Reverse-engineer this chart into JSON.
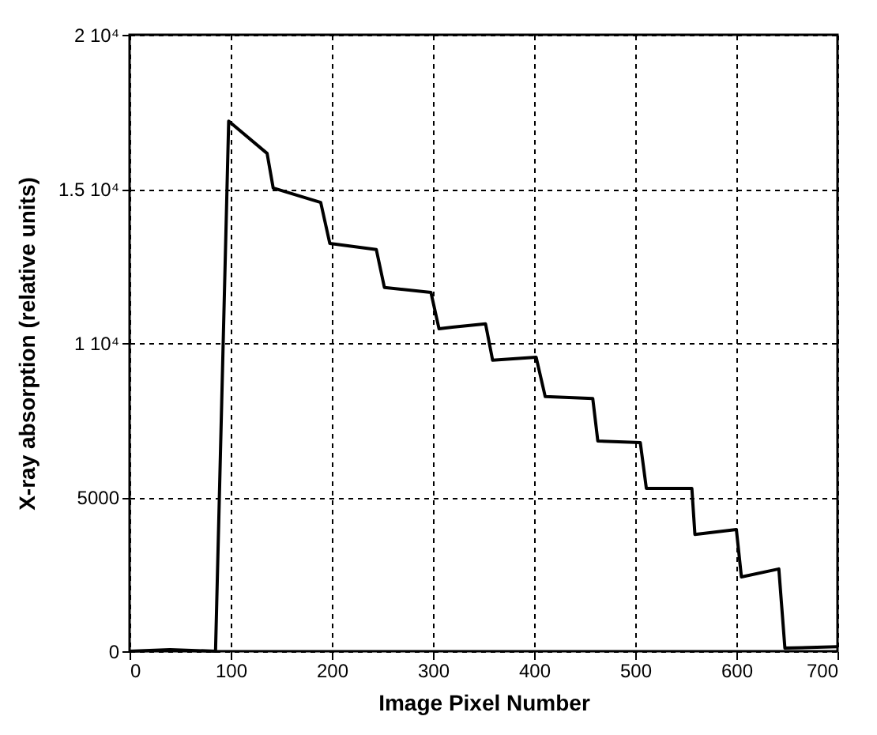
{
  "chart_data": {
    "type": "line",
    "xlabel": "Image Pixel Number",
    "ylabel": "X-ray absorption (relative units)",
    "x": [
      0,
      40,
      85,
      98,
      136,
      142,
      189,
      198,
      244,
      252,
      298,
      306,
      319,
      352,
      359,
      402,
      411,
      458,
      463,
      505,
      511,
      556,
      559,
      600,
      605,
      642,
      648,
      700
    ],
    "series": [
      {
        "color": "#000000",
        "values": [
          0,
          50,
          0,
          17200,
          16150,
          15030,
          14560,
          13230,
          13030,
          11800,
          11640,
          10460,
          10510,
          10620,
          9440,
          9540,
          8260,
          8200,
          6820,
          6770,
          5280,
          5280,
          3790,
          3950,
          2410,
          2670,
          100,
          150
        ]
      }
    ],
    "xlim": [
      0,
      700
    ],
    "xticks": [
      0,
      100,
      200,
      300,
      400,
      500,
      600,
      700
    ],
    "ylim": [
      0,
      20000
    ],
    "yticks": [
      0,
      5000,
      {
        "value": 10000,
        "label": "1 10⁴"
      },
      {
        "value": 15000,
        "label": "1.5 10⁴"
      },
      {
        "value": 20000,
        "label": "2 10⁴"
      }
    ],
    "grid": true,
    "line_style": "solid"
  }
}
